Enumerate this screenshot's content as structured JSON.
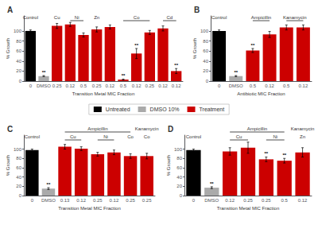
{
  "chart_data": [
    {
      "type": "bar",
      "title": "A",
      "xlabel": "Transition Metal MIC Fraction",
      "ylabel": "% Growth",
      "categories": [
        "0",
        "DMSO",
        "0.25",
        "0.12",
        "0.5",
        "0.25",
        "0.12",
        "0.5",
        "0.12",
        "0.25",
        "0.12",
        "0.12"
      ],
      "series": [
        {
          "name": "Untreated",
          "color": "black",
          "values": [
            100,
            null,
            null,
            null,
            null,
            null,
            null,
            null,
            null,
            null,
            null,
            null
          ],
          "errors": [
            2,
            null,
            null,
            null,
            null,
            null,
            null,
            null,
            null,
            null,
            null,
            null
          ],
          "annotations": [
            null,
            null,
            null,
            null,
            null,
            null,
            null,
            null,
            null,
            null,
            null,
            null
          ]
        },
        {
          "name": "DMSO 10%",
          "color": "#aaaaaa",
          "values": [
            null,
            10,
            null,
            null,
            null,
            null,
            null,
            null,
            null,
            null,
            null,
            null
          ],
          "errors": [
            null,
            1,
            null,
            null,
            null,
            null,
            null,
            null,
            null,
            null,
            null,
            null
          ],
          "annotations": [
            null,
            "**",
            null,
            null,
            null,
            null,
            null,
            null,
            null,
            null,
            null,
            null
          ]
        },
        {
          "name": "Treatment",
          "color": "#cc0000",
          "values": [
            null,
            null,
            110,
            113,
            92,
            103,
            108,
            3,
            55,
            97,
            105,
            20
          ],
          "errors": [
            null,
            null,
            5,
            4,
            4,
            5,
            4,
            1,
            10,
            4,
            5,
            5
          ],
          "annotations": [
            null,
            null,
            null,
            null,
            null,
            null,
            null,
            "**",
            "**",
            null,
            null,
            "**"
          ]
        }
      ],
      "group_labels": [
        {
          "text": "Control",
          "first": 0,
          "last": 0
        },
        {
          "text": "Cu",
          "first": 2,
          "last": 2
        },
        {
          "text": "Ni",
          "first": 3,
          "last": 4
        },
        {
          "text": "Zn",
          "first": 5,
          "last": 5
        },
        {
          "text": "Co",
          "first": 7,
          "last": 9
        },
        {
          "text": "Cd",
          "first": 10,
          "last": 11
        }
      ],
      "ylim": [
        0,
        130
      ],
      "yticks": [
        0,
        20,
        40,
        60,
        80,
        100
      ],
      "grid": false,
      "legend": "center"
    },
    {
      "type": "bar",
      "title": "B",
      "xlabel": "Antibiotic MIC Fraction",
      "ylabel": "% Growth",
      "categories": [
        "0",
        "DMSO",
        "0.5",
        "0.12",
        "0.5",
        "0.12"
      ],
      "series": [
        {
          "name": "Untreated",
          "color": "black",
          "values": [
            100,
            null,
            null,
            null,
            null,
            null
          ],
          "errors": [
            2,
            null,
            null,
            null,
            null,
            null
          ],
          "annotations": [
            null,
            null,
            null,
            null,
            null,
            null
          ]
        },
        {
          "name": "DMSO 10%",
          "color": "#aaaaaa",
          "values": [
            null,
            10,
            null,
            null,
            null,
            null
          ],
          "errors": [
            null,
            1,
            null,
            null,
            null,
            null
          ],
          "annotations": [
            null,
            "**",
            null,
            null,
            null,
            null
          ]
        },
        {
          "name": "Treatment",
          "color": "#cc0000",
          "values": [
            null,
            null,
            61,
            93,
            107,
            107
          ],
          "errors": [
            null,
            null,
            4,
            6,
            5,
            5
          ],
          "annotations": [
            null,
            null,
            "**",
            null,
            null,
            null
          ]
        }
      ],
      "group_labels": [
        {
          "text": "Control",
          "first": 0,
          "last": 0
        },
        {
          "text": "Ampicillin",
          "first": 2,
          "last": 3
        },
        {
          "text": "Kanamycin",
          "first": 4,
          "last": 5
        }
      ],
      "ylim": [
        0,
        130
      ],
      "yticks": [
        0,
        20,
        40,
        60,
        80,
        100
      ],
      "grid": false,
      "legend": "center"
    },
    {
      "type": "bar",
      "title": "C",
      "xlabel": "Transition Metal MIC Fraction",
      "ylabel": "% Growth",
      "categories": [
        "0",
        "DMSO",
        "0.13",
        "0.12",
        "0.25",
        "0.12",
        "0.25",
        "0.25"
      ],
      "series": [
        {
          "name": "Untreated",
          "color": "black",
          "values": [
            98,
            null,
            null,
            null,
            null,
            null,
            null,
            null
          ],
          "errors": [
            2,
            null,
            null,
            null,
            null,
            null,
            null,
            null
          ],
          "annotations": [
            null,
            null,
            null,
            null,
            null,
            null,
            null,
            null
          ]
        },
        {
          "name": "DMSO 10%",
          "color": "#aaaaaa",
          "values": [
            null,
            15,
            null,
            null,
            null,
            null,
            null,
            null
          ],
          "errors": [
            null,
            2,
            null,
            null,
            null,
            null,
            null,
            null
          ],
          "annotations": [
            null,
            "**",
            null,
            null,
            null,
            null,
            null,
            null
          ]
        },
        {
          "name": "Treatment",
          "color": "#cc0000",
          "values": [
            null,
            null,
            105,
            101,
            89,
            93,
            85,
            85
          ],
          "errors": [
            null,
            null,
            5,
            4,
            4,
            5,
            5,
            6
          ],
          "annotations": [
            null,
            null,
            null,
            null,
            null,
            null,
            null,
            null
          ]
        }
      ],
      "group_labels": [
        {
          "text": "Control",
          "first": 0,
          "last": 0
        },
        {
          "text": "Cu",
          "first": 2,
          "last": 3
        },
        {
          "text": "Ni",
          "first": 4,
          "last": 5
        },
        {
          "text": "Co",
          "first": 6,
          "last": 6
        },
        {
          "text": "Co",
          "first": 7,
          "last": 7
        }
      ],
      "group_labels_2": [
        {
          "text": "Ampicillin",
          "first": 2,
          "last": 6
        },
        {
          "text": "Kanamycin",
          "first": 7,
          "last": 7
        }
      ],
      "ylim": [
        0,
        130
      ],
      "yticks": [
        0,
        20,
        40,
        60,
        80,
        100
      ],
      "grid": false,
      "legend": "center"
    },
    {
      "type": "bar",
      "title": "D",
      "xlabel": "Transition Metal MIC Fraction",
      "ylabel": "% Growth",
      "categories": [
        "0",
        "DMSO",
        "0.12",
        "0.25",
        "0.25",
        "0.5",
        "0.12"
      ],
      "series": [
        {
          "name": "Untreated",
          "color": "black",
          "values": [
            98,
            null,
            null,
            null,
            null,
            null,
            null
          ],
          "errors": [
            2,
            null,
            null,
            null,
            null,
            null,
            null
          ],
          "annotations": [
            null,
            null,
            null,
            null,
            null,
            null,
            null
          ]
        },
        {
          "name": "DMSO 10%",
          "color": "#aaaaaa",
          "values": [
            null,
            17,
            null,
            null,
            null,
            null,
            null
          ],
          "errors": [
            null,
            2,
            null,
            null,
            null,
            null,
            null
          ],
          "annotations": [
            null,
            "**",
            null,
            null,
            null,
            null,
            null
          ]
        },
        {
          "name": "Treatment",
          "color": "#cc0000",
          "values": [
            null,
            null,
            95,
            103,
            78,
            75,
            93
          ],
          "errors": [
            null,
            null,
            8,
            12,
            5,
            5,
            10
          ],
          "annotations": [
            null,
            null,
            null,
            null,
            "**",
            "**",
            null
          ]
        }
      ],
      "group_labels": [
        {
          "text": "Control",
          "first": 0,
          "last": 0
        },
        {
          "text": "Cu",
          "first": 2,
          "last": 3
        },
        {
          "text": "Ni",
          "first": 4,
          "last": 5
        },
        {
          "text": "Zn",
          "first": 6,
          "last": 6
        }
      ],
      "group_labels_2": [
        {
          "text": "Ampicillin",
          "first": 2,
          "last": 5
        },
        {
          "text": "Kanamycin",
          "first": 6,
          "last": 6
        }
      ],
      "ylim": [
        0,
        130
      ],
      "yticks": [
        0,
        20,
        40,
        60,
        80,
        100
      ],
      "grid": false,
      "legend": "center"
    }
  ]
}
